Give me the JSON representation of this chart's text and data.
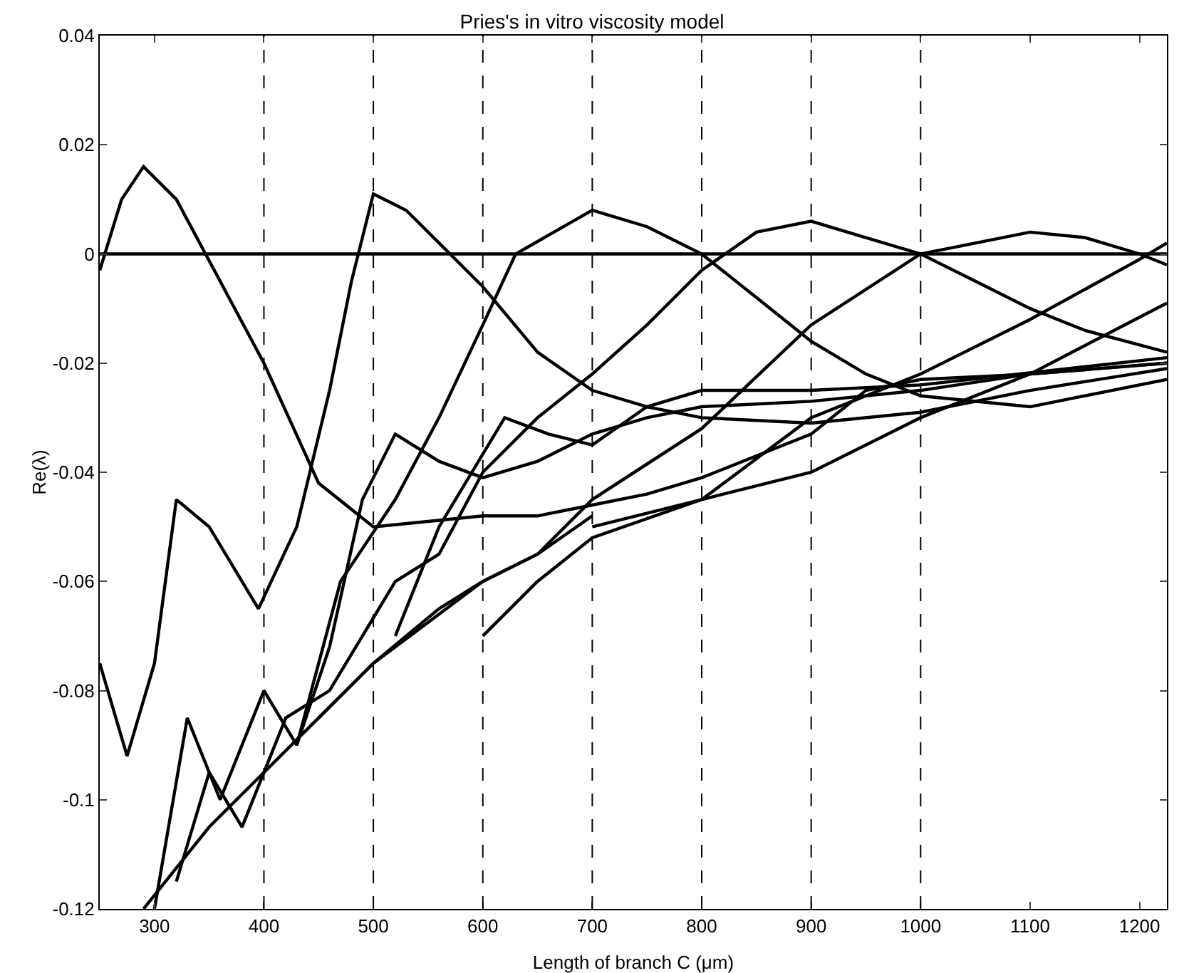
{
  "chart_data": {
    "type": "line",
    "title": "Pries's in vitro viscosity model",
    "xlabel": "Length of branch C (μm)",
    "ylabel": "Re(λ)",
    "xlim": [
      250,
      1225
    ],
    "ylim": [
      -0.12,
      0.04
    ],
    "xticks": [
      300,
      400,
      500,
      600,
      700,
      800,
      900,
      1000,
      1100,
      1200
    ],
    "yticks": [
      -0.12,
      -0.1,
      -0.08,
      -0.06,
      -0.04,
      -0.02,
      0,
      0.02,
      0.04
    ],
    "grid": false,
    "marker": "none",
    "line_style": "solid",
    "ref_lines": [
      {
        "axis": "x",
        "value": 400,
        "color": "#000000",
        "line_style": "dashed"
      },
      {
        "axis": "x",
        "value": 500,
        "color": "#000000",
        "line_style": "dashed"
      },
      {
        "axis": "x",
        "value": 600,
        "color": "#000000",
        "line_style": "dashed"
      },
      {
        "axis": "x",
        "value": 700,
        "color": "#000000",
        "line_style": "dashed"
      },
      {
        "axis": "x",
        "value": 800,
        "color": "#000000",
        "line_style": "dashed"
      },
      {
        "axis": "x",
        "value": 900,
        "color": "#000000",
        "line_style": "dashed"
      },
      {
        "axis": "x",
        "value": 1000,
        "color": "#000000",
        "line_style": "dashed"
      }
    ],
    "series": [
      {
        "color": "#000000",
        "x": [
          250,
          1225
        ],
        "values": [
          0,
          0
        ]
      },
      {
        "color": "#000000",
        "x": [
          250,
          270,
          290,
          320,
          360,
          400,
          450,
          500,
          550,
          600,
          650,
          700,
          750,
          800,
          850,
          900,
          950,
          1000,
          1100,
          1225
        ],
        "values": [
          -0.003,
          0.01,
          0.016,
          0.01,
          -0.005,
          -0.02,
          -0.042,
          -0.05,
          -0.049,
          -0.048,
          -0.048,
          -0.046,
          -0.044,
          -0.041,
          -0.037,
          -0.033,
          -0.025,
          -0.023,
          -0.022,
          -0.02
        ]
      },
      {
        "color": "#000000",
        "x": [
          250,
          275,
          300,
          320,
          350,
          395,
          430,
          460,
          480,
          500,
          530,
          560,
          600,
          650,
          700,
          750,
          800,
          900,
          1000,
          1100,
          1225
        ],
        "values": [
          -0.075,
          -0.092,
          -0.075,
          -0.045,
          -0.05,
          -0.065,
          -0.05,
          -0.025,
          -0.005,
          0.011,
          0.008,
          0.002,
          -0.006,
          -0.018,
          -0.025,
          -0.028,
          -0.03,
          -0.031,
          -0.029,
          -0.025,
          -0.021
        ]
      },
      {
        "color": "#000000",
        "x": [
          300,
          330,
          360,
          400,
          430,
          470,
          520,
          560,
          600,
          630,
          700,
          750,
          800,
          850,
          900,
          950,
          1000,
          1100,
          1225
        ],
        "values": [
          -0.12,
          -0.085,
          -0.1,
          -0.08,
          -0.09,
          -0.06,
          -0.045,
          -0.03,
          -0.013,
          0,
          0.008,
          0.005,
          0,
          -0.008,
          -0.016,
          -0.022,
          -0.026,
          -0.028,
          -0.023
        ]
      },
      {
        "color": "#000000",
        "x": [
          320,
          350,
          380,
          420,
          460,
          520,
          560,
          600,
          650,
          700,
          750,
          800,
          850,
          900,
          950,
          1000,
          1050,
          1100,
          1150,
          1225
        ],
        "values": [
          -0.115,
          -0.095,
          -0.105,
          -0.085,
          -0.08,
          -0.06,
          -0.055,
          -0.04,
          -0.03,
          -0.022,
          -0.013,
          -0.003,
          0.004,
          0.006,
          0.003,
          0,
          -0.005,
          -0.01,
          -0.014,
          -0.018
        ]
      },
      {
        "color": "#000000",
        "x": [
          450,
          500,
          560,
          600,
          650,
          700,
          800,
          900,
          1000,
          1100,
          1150,
          1200,
          1225
        ],
        "values": [
          -0.085,
          -0.075,
          -0.065,
          -0.06,
          -0.055,
          -0.045,
          -0.032,
          -0.013,
          0,
          0.004,
          0.003,
          0,
          -0.002
        ]
      },
      {
        "color": "#000000",
        "x": [
          600,
          650,
          700,
          800,
          900,
          1000,
          1100,
          1200,
          1225
        ],
        "values": [
          -0.07,
          -0.06,
          -0.052,
          -0.045,
          -0.03,
          -0.022,
          -0.012,
          -0.001,
          0.002
        ]
      },
      {
        "color": "#000000",
        "x": [
          700,
          800,
          900,
          1000,
          1100,
          1225
        ],
        "values": [
          -0.05,
          -0.045,
          -0.04,
          -0.03,
          -0.022,
          -0.009
        ]
      },
      {
        "color": "#000000",
        "x": [
          430,
          460,
          490,
          520,
          560,
          600,
          650,
          700,
          750,
          800,
          900,
          1000,
          1100,
          1225
        ],
        "values": [
          -0.09,
          -0.072,
          -0.045,
          -0.033,
          -0.038,
          -0.041,
          -0.038,
          -0.033,
          -0.03,
          -0.028,
          -0.027,
          -0.025,
          -0.022,
          -0.02
        ]
      },
      {
        "color": "#000000",
        "x": [
          520,
          560,
          620,
          660,
          700,
          750,
          800,
          900,
          1000,
          1225
        ],
        "values": [
          -0.07,
          -0.05,
          -0.03,
          -0.033,
          -0.035,
          -0.028,
          -0.025,
          -0.025,
          -0.024,
          -0.019
        ]
      },
      {
        "color": "#000000",
        "x": [
          290,
          350,
          400,
          450,
          500,
          600,
          650,
          700
        ],
        "values": [
          -0.12,
          -0.105,
          -0.095,
          -0.085,
          -0.075,
          -0.06,
          -0.055,
          -0.048
        ]
      }
    ]
  }
}
